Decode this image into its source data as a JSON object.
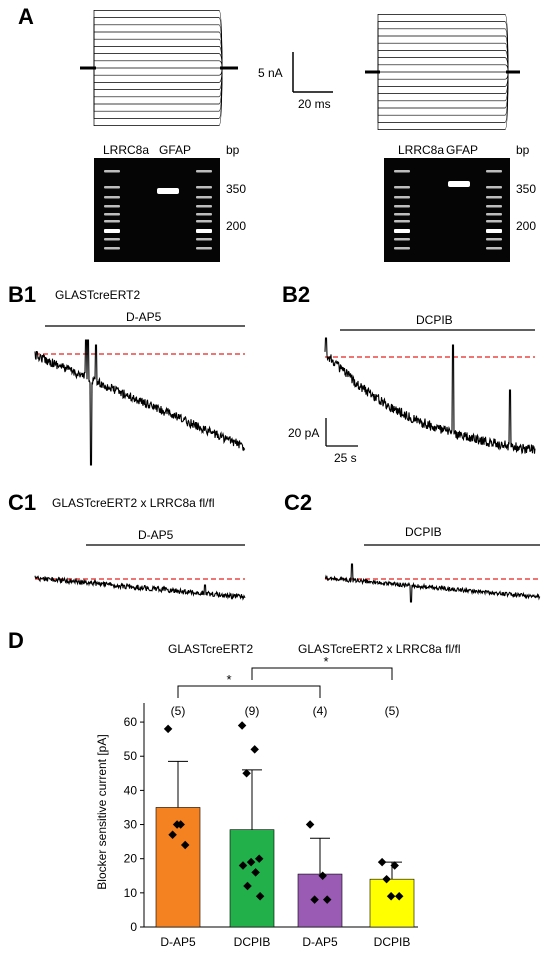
{
  "panels": {
    "A": "A",
    "B1": "B1",
    "B2": "B2",
    "C1": "C1",
    "C2": "C2",
    "D": "D"
  },
  "scalebar_A": {
    "y": "5 nA",
    "x": "20 ms"
  },
  "scalebar_B": {
    "y": "20 pA",
    "x": "25 s"
  },
  "gels": {
    "left": {
      "lane1": "LRRC8a",
      "lane2": "GFAP",
      "unit": "bp",
      "mark1": "350",
      "mark2": "200"
    },
    "right": {
      "lane1": "LRRC8a",
      "lane2": "GFAP",
      "unit": "bp",
      "mark1": "350",
      "mark2": "200"
    }
  },
  "genotype": {
    "B": "GLASTcreERT2",
    "C": "GLASTcreERT2 x LRRC8a fl/fl"
  },
  "drugs": {
    "B1": "D-AP5",
    "B2": "DCPIB",
    "C1": "D-AP5",
    "C2": "DCPIB"
  },
  "colors": {
    "baseline": "#e8201c",
    "orange": "#f58220",
    "green": "#22b04b",
    "purple": "#9a5bb5",
    "yellow": "#ffff00"
  },
  "chart_data": {
    "type": "bar",
    "groups": [
      "GLASTcreERT2",
      "GLASTcreERT2 x LRRC8a fl/fl"
    ],
    "categories": [
      "D-AP5",
      "DCPIB",
      "D-AP5",
      "DCPIB"
    ],
    "values": [
      35,
      28.5,
      15.5,
      14
    ],
    "errors": [
      13.5,
      17.5,
      10.5,
      5
    ],
    "n_labels": [
      "(5)",
      "(9)",
      "(4)",
      "(5)"
    ],
    "points": [
      [
        58,
        30,
        27,
        24,
        30
      ],
      [
        59,
        52,
        45,
        20,
        19,
        18,
        16,
        12,
        9
      ],
      [
        30,
        15,
        8,
        8
      ],
      [
        19,
        18,
        14,
        9,
        9
      ]
    ],
    "bar_colors": [
      "#f58220",
      "#22b04b",
      "#9a5bb5",
      "#ffff00"
    ],
    "significance": [
      "*",
      "*"
    ],
    "ylabel": "Blocker sensitive current [pA]",
    "yticks": [
      0,
      10,
      20,
      30,
      40,
      50,
      60
    ],
    "ylim": [
      0,
      65
    ]
  }
}
